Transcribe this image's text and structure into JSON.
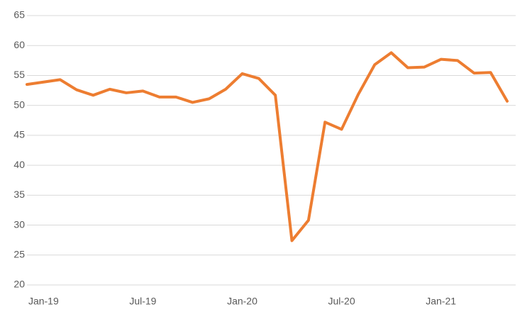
{
  "chart_data": {
    "type": "line",
    "categories": [
      null,
      "Jan-19",
      null,
      null,
      null,
      null,
      null,
      "Jul-19",
      null,
      null,
      null,
      null,
      null,
      "Jan-20",
      null,
      null,
      null,
      null,
      null,
      "Jul-20",
      null,
      null,
      null,
      null,
      null,
      "Jan-21",
      null,
      null,
      null,
      null
    ],
    "series": [
      {
        "color": "#ed7d31",
        "values": [
          53.5,
          53.9,
          54.3,
          52.6,
          51.7,
          52.7,
          52.1,
          52.4,
          51.4,
          51.4,
          50.5,
          51.1,
          52.7,
          55.3,
          54.5,
          51.7,
          27.4,
          30.8,
          47.2,
          46.0,
          51.8,
          56.8,
          58.8,
          56.3,
          56.4,
          57.7,
          57.5,
          55.4,
          55.5,
          50.7
        ]
      }
    ],
    "ylim": [
      20,
      65
    ],
    "yticks": [
      20,
      25,
      30,
      35,
      40,
      45,
      50,
      55,
      60,
      65
    ],
    "grid": true
  }
}
